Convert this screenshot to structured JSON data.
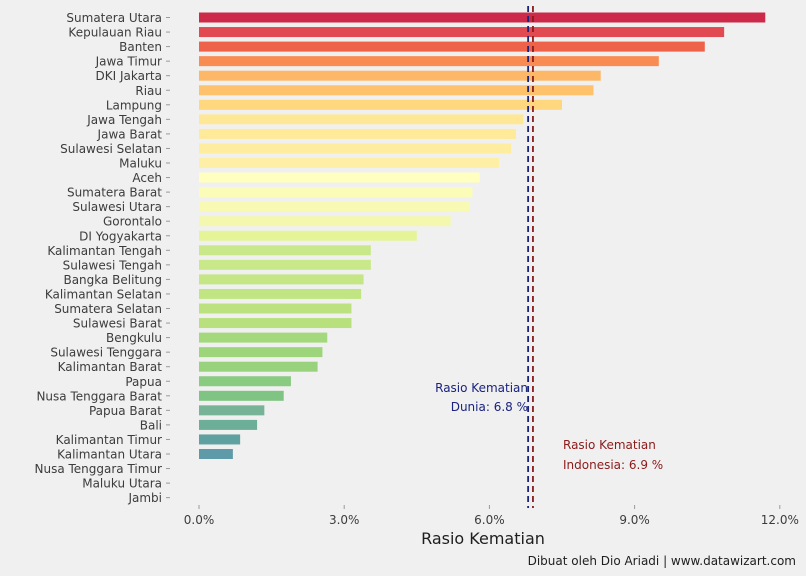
{
  "chart_data": {
    "type": "bar",
    "orientation": "horizontal",
    "title": "",
    "xlabel": "Rasio Kematian",
    "ylabel": "",
    "xlim": [
      -0.6,
      12.0
    ],
    "x_ticks": [
      0,
      3,
      6,
      9,
      12
    ],
    "x_tick_labels": [
      "0.0%",
      "3.0%",
      "6.0%",
      "9.0%",
      "12.0%"
    ],
    "grid": false,
    "categories": [
      "Sumatera Utara",
      "Kepulauan Riau",
      "Banten",
      "Jawa Timur",
      "DKI Jakarta",
      "Riau",
      "Lampung",
      "Jawa Tengah",
      "Jawa Barat",
      "Sulawesi Selatan",
      "Maluku",
      "Aceh",
      "Sumatera Barat",
      "Sulawesi Utara",
      "Gorontalo",
      "DI Yogyakarta",
      "Kalimantan Tengah",
      "Sulawesi Tengah",
      "Bangka Belitung",
      "Kalimantan Selatan",
      "Sumatera Selatan",
      "Sulawesi Barat",
      "Bengkulu",
      "Sulawesi Tenggara",
      "Kalimantan Barat",
      "Papua",
      "Nusa Tenggara Barat",
      "Papua Barat",
      "Bali",
      "Kalimantan Timur",
      "Kalimantan Utara",
      "Nusa Tenggara Timur",
      "Maluku Utara",
      "Jambi"
    ],
    "values": [
      11.7,
      10.85,
      10.45,
      9.5,
      8.3,
      8.15,
      7.5,
      6.7,
      6.55,
      6.45,
      6.2,
      5.8,
      5.65,
      5.6,
      5.2,
      4.5,
      3.55,
      3.55,
      3.4,
      3.35,
      3.15,
      3.15,
      2.65,
      2.55,
      2.45,
      1.9,
      1.75,
      1.35,
      1.2,
      0.85,
      0.7,
      0,
      0,
      0
    ],
    "bar_colors": [
      "#cc2a48",
      "#e04a50",
      "#ed6248",
      "#f98c52",
      "#fcb866",
      "#fdc26b",
      "#fed77e",
      "#fee898",
      "#feea98",
      "#feec9f",
      "#feefa6",
      "#ffffbf",
      "#fbfcb8",
      "#f8fab4",
      "#f3f8ae",
      "#e6f498",
      "#c9e88a",
      "#c9e88a",
      "#c5e685",
      "#c2e583",
      "#bce27f",
      "#b8e07c",
      "#a4d87d",
      "#9dd57b",
      "#98d27c",
      "#8acb82",
      "#7fc482",
      "#77b397",
      "#6cae98",
      "#5fa0a0",
      "#5f9aa8",
      "#cccccc",
      "#cccccc",
      "#cccccc"
    ],
    "reference_lines": [
      {
        "name": "world",
        "value": 6.8,
        "color": "#1a237e",
        "label_line1": "Rasio Kematian",
        "label_line2": "Dunia: 6.8 %"
      },
      {
        "name": "indonesia",
        "value": 6.9,
        "color": "#8b1a1a",
        "label_line1": "Rasio Kematian",
        "label_line2": "Indonesia: 6.9 %"
      }
    ],
    "credit": "Dibuat oleh Dio Ariadi | www.datawizart.com"
  }
}
